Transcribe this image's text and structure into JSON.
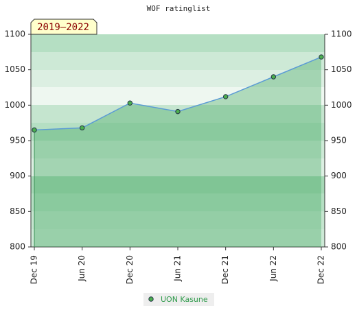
{
  "chart_data": {
    "type": "line",
    "title": "WOF ratinglist",
    "annotation": "2019–2022",
    "categories": [
      "Dec 19",
      "Jun 20",
      "Dec 20",
      "Jun 21",
      "Dec 21",
      "Jun 22",
      "Dec 22"
    ],
    "series": [
      {
        "name": "UON Kasune",
        "color": "#5b9bd5",
        "marker_color": "#4caf50",
        "values": [
          965,
          968,
          1003,
          991,
          1012,
          1040,
          1068
        ]
      }
    ],
    "ylim": [
      800,
      1100
    ],
    "yticks": [
      800,
      850,
      900,
      950,
      1000,
      1050,
      1100
    ],
    "y2lim": [
      800,
      1100
    ],
    "y2ticks": [
      800,
      850,
      900,
      950,
      1000,
      1050,
      1100
    ],
    "legend": "bottom"
  }
}
